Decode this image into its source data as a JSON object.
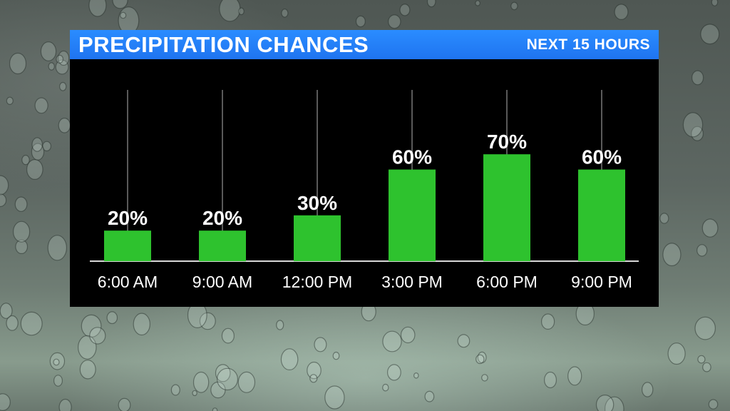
{
  "chart_data": {
    "type": "bar",
    "title": "PRECIPITATION CHANCES",
    "subtitle": "NEXT 15 HOURS",
    "categories": [
      "6:00 AM",
      "9:00 AM",
      "12:00 PM",
      "3:00 PM",
      "6:00 PM",
      "9:00 PM"
    ],
    "values": [
      20,
      20,
      30,
      60,
      70,
      60
    ],
    "data_labels": [
      "20%",
      "20%",
      "30%",
      "60%",
      "70%",
      "60%"
    ],
    "ylim": [
      0,
      100
    ],
    "bar_color": "#2ec22e",
    "grid": "vertical lines at each category",
    "legend": "none"
  },
  "colors": {
    "title_bar": "#1f74f0",
    "panel": "#000000",
    "text": "#ffffff"
  }
}
